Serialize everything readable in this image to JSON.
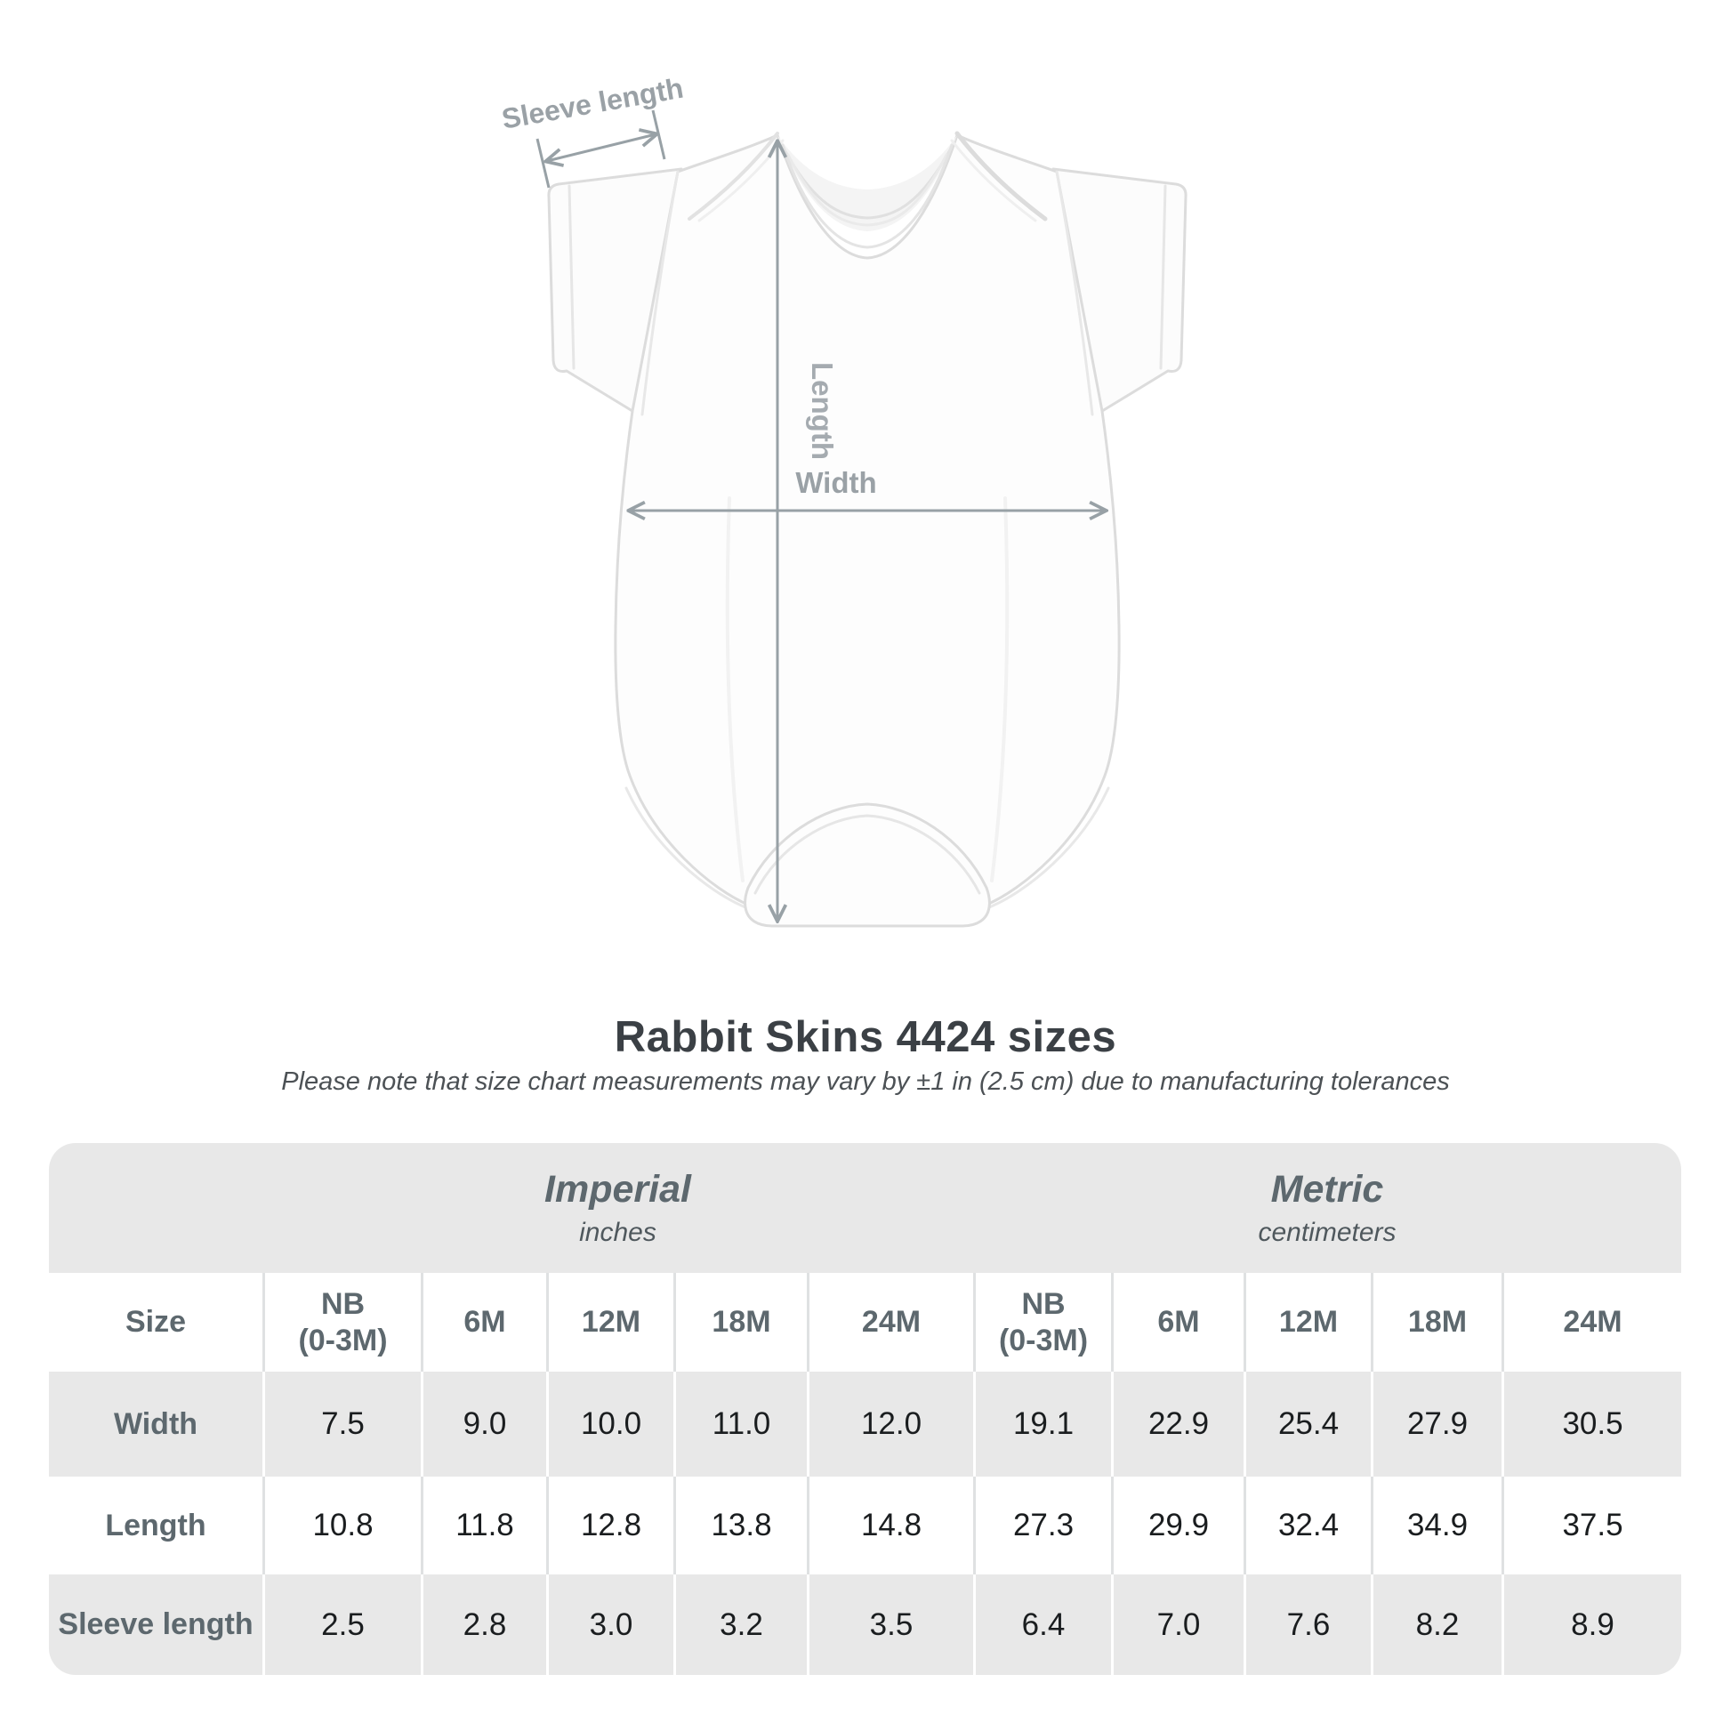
{
  "title": "Rabbit Skins 4424 sizes",
  "subtitle": "Please note that size chart measurements may vary by ±1 in (2.5 cm) due to manufacturing tolerances",
  "diagram": {
    "labels": {
      "sleeve": "Sleeve length",
      "length": "Length",
      "width": "Width"
    }
  },
  "table": {
    "size_label": "Size",
    "unit_groups": [
      {
        "name": "Imperial",
        "unit": "inches"
      },
      {
        "name": "Metric",
        "unit": "centimeters"
      }
    ],
    "columns": [
      {
        "lines": [
          "NB",
          "(0-3M)"
        ]
      },
      {
        "lines": [
          "6M"
        ]
      },
      {
        "lines": [
          "12M"
        ]
      },
      {
        "lines": [
          "18M"
        ]
      },
      {
        "lines": [
          "24M"
        ]
      },
      {
        "lines": [
          "NB",
          "(0-3M)"
        ]
      },
      {
        "lines": [
          "6M"
        ]
      },
      {
        "lines": [
          "12M"
        ]
      },
      {
        "lines": [
          "18M"
        ]
      },
      {
        "lines": [
          "24M"
        ]
      }
    ],
    "rows": [
      {
        "label": "Width",
        "values": [
          "7.5",
          "9.0",
          "10.0",
          "11.0",
          "12.0",
          "19.1",
          "22.9",
          "25.4",
          "27.9",
          "30.5"
        ]
      },
      {
        "label": "Length",
        "values": [
          "10.8",
          "11.8",
          "12.8",
          "13.8",
          "14.8",
          "27.3",
          "29.9",
          "32.4",
          "34.9",
          "37.5"
        ]
      },
      {
        "label": "Sleeve length",
        "values": [
          "2.5",
          "2.8",
          "3.0",
          "3.2",
          "3.5",
          "6.4",
          "7.0",
          "7.6",
          "8.2",
          "8.9"
        ]
      }
    ]
  },
  "chart_data": {
    "type": "table",
    "title": "Rabbit Skins 4424 sizes",
    "note": "Measurements may vary by ±1 in (2.5 cm) due to manufacturing tolerances",
    "sizes": [
      "NB (0-3M)",
      "6M",
      "12M",
      "18M",
      "24M"
    ],
    "measurements": [
      "Width",
      "Length",
      "Sleeve length"
    ],
    "imperial_inches": {
      "Width": [
        7.5,
        9.0,
        10.0,
        11.0,
        12.0
      ],
      "Length": [
        10.8,
        11.8,
        12.8,
        13.8,
        14.8
      ],
      "Sleeve length": [
        2.5,
        2.8,
        3.0,
        3.2,
        3.5
      ]
    },
    "metric_centimeters": {
      "Width": [
        19.1,
        22.9,
        25.4,
        27.9,
        30.5
      ],
      "Length": [
        27.3,
        29.9,
        32.4,
        34.9,
        37.5
      ],
      "Sleeve length": [
        6.4,
        7.0,
        7.6,
        8.2,
        8.9
      ]
    }
  },
  "colors": {
    "table_stripe_gray": "#e8e8e8",
    "header_text": "#5d686e",
    "value_text": "#1a1d1f",
    "title_text": "#3b4045",
    "diagram_gray": "#9aa1a6",
    "garment_outline": "#dcdcdc"
  }
}
